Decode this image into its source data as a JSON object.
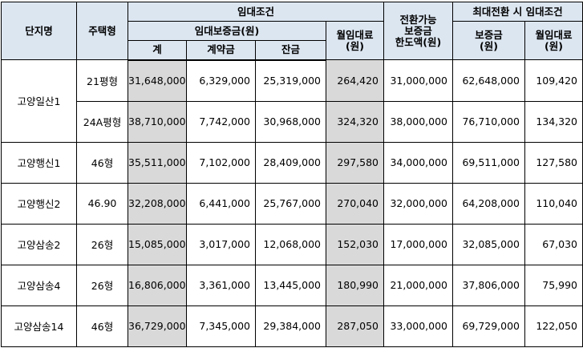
{
  "headers": {
    "complex_name": "단지명",
    "housing_type": "주택형",
    "lease_conditions": "임대조건",
    "deposit": "임대보증금(원)",
    "total": "계",
    "contract": "계약금",
    "balance": "잔금",
    "monthly_rent": "월임대료\n(원)",
    "conversion_limit": "전환가능\n보증금\n한도액(원)",
    "max_conversion": "최대전환 시 임대조건",
    "max_deposit": "보증금\n(원)",
    "max_monthly_rent": "월임대료\n(원)"
  },
  "rows": [
    {
      "name": "고양일산1",
      "type": "21평형",
      "total": "31,648,000",
      "contract": "6,329,000",
      "balance": "25,319,000",
      "rent": "264,420",
      "limit": "31,000,000",
      "max_deposit": "62,648,000",
      "max_rent": "109,420"
    },
    {
      "name": "",
      "type": "24A평형",
      "total": "38,710,000",
      "contract": "7,742,000",
      "balance": "30,968,000",
      "rent": "324,320",
      "limit": "38,000,000",
      "max_deposit": "76,710,000",
      "max_rent": "134,320"
    },
    {
      "name": "고양행신1",
      "type": "46형",
      "total": "35,511,000",
      "contract": "7,102,000",
      "balance": "28,409,000",
      "rent": "297,580",
      "limit": "34,000,000",
      "max_deposit": "69,511,000",
      "max_rent": "127,580"
    },
    {
      "name": "고양행신2",
      "type": "46.90",
      "total": "32,208,000",
      "contract": "6,441,000",
      "balance": "25,767,000",
      "rent": "270,040",
      "limit": "32,000,000",
      "max_deposit": "64,208,000",
      "max_rent": "110,040"
    },
    {
      "name": "고양삼송2",
      "type": "26형",
      "total": "15,085,000",
      "contract": "3,017,000",
      "balance": "12,068,000",
      "rent": "152,030",
      "limit": "17,000,000",
      "max_deposit": "32,085,000",
      "max_rent": "67,030"
    },
    {
      "name": "고양삼송4",
      "type": "26형",
      "total": "16,806,000",
      "contract": "3,361,000",
      "balance": "13,445,000",
      "rent": "180,990",
      "limit": "21,000,000",
      "max_deposit": "37,806,000",
      "max_rent": "75,990"
    },
    {
      "name": "고양삼송14",
      "type": "46형",
      "total": "36,729,000",
      "contract": "7,345,000",
      "balance": "29,384,000",
      "rent": "287,050",
      "limit": "33,000,000",
      "max_deposit": "69,729,000",
      "max_rent": "122,050"
    }
  ]
}
